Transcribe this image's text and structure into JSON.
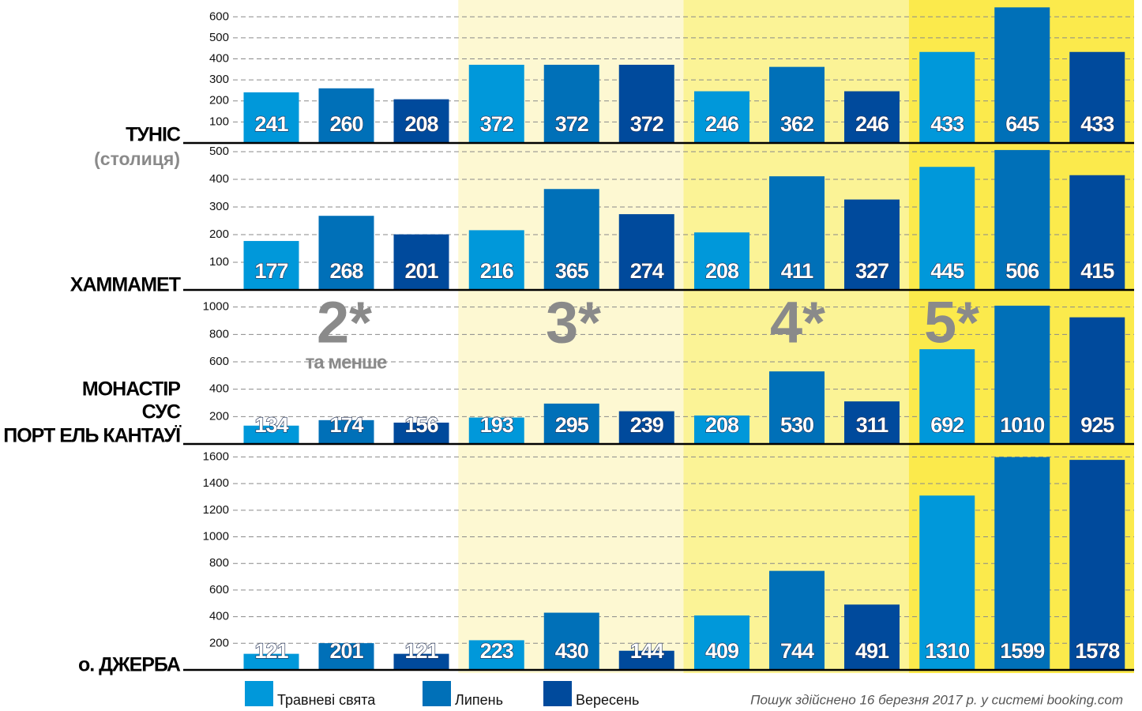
{
  "chart_data": [
    {
      "type": "bar",
      "title_lines": [
        "ТУНІС"
      ],
      "subtitle": "(столиця)",
      "series": [
        {
          "name": "Травневі свята",
          "color": "#0098da",
          "values": [
            241,
            372,
            246,
            433
          ]
        },
        {
          "name": "Липень",
          "color": "#0070b8",
          "values": [
            260,
            372,
            362,
            645
          ]
        },
        {
          "name": "Вересень",
          "color": "#004a9c",
          "values": [
            208,
            372,
            246,
            433
          ]
        }
      ],
      "ylim": [
        0,
        650
      ],
      "yticks": [
        100,
        200,
        300,
        400,
        500,
        600
      ],
      "grid": true
    },
    {
      "type": "bar",
      "title_lines": [
        "ХАММАМЕТ"
      ],
      "series": [
        {
          "name": "Травневі свята",
          "color": "#0098da",
          "values": [
            177,
            216,
            208,
            445
          ]
        },
        {
          "name": "Липень",
          "color": "#0070b8",
          "values": [
            268,
            365,
            411,
            506
          ]
        },
        {
          "name": "Вересень",
          "color": "#004a9c",
          "values": [
            201,
            274,
            327,
            415
          ]
        }
      ],
      "ylim": [
        0,
        520
      ],
      "yticks": [
        100,
        200,
        300,
        400,
        500
      ],
      "grid": true
    },
    {
      "type": "bar",
      "title_lines": [
        "МОНАСТІР",
        "СУС",
        "ПОРТ ЕЛЬ КАНТАУЇ"
      ],
      "series": [
        {
          "name": "Травневі свята",
          "color": "#0098da",
          "values": [
            134,
            193,
            208,
            692
          ]
        },
        {
          "name": "Липень",
          "color": "#0070b8",
          "values": [
            174,
            295,
            530,
            1010
          ]
        },
        {
          "name": "Вересень",
          "color": "#004a9c",
          "values": [
            156,
            239,
            311,
            925
          ]
        }
      ],
      "ylim": [
        0,
        1050
      ],
      "yticks": [
        200,
        400,
        600,
        800,
        1000
      ],
      "grid": true
    },
    {
      "type": "bar",
      "title_lines": [
        "о. ДЖЕРБА"
      ],
      "series": [
        {
          "name": "Травневі свята",
          "color": "#0098da",
          "values": [
            121,
            223,
            409,
            1310
          ]
        },
        {
          "name": "Липень",
          "color": "#0070b8",
          "values": [
            201,
            430,
            744,
            1599
          ]
        },
        {
          "name": "Вересень",
          "color": "#004a9c",
          "values": [
            121,
            144,
            491,
            1578
          ]
        }
      ],
      "ylim": [
        0,
        1650
      ],
      "yticks": [
        200,
        400,
        600,
        800,
        1000,
        1200,
        1400,
        1600
      ],
      "grid": true
    }
  ],
  "star_groups": [
    "2*",
    "3*",
    "4*",
    "5*"
  ],
  "star_group_note": "та менше",
  "band_colors": [
    "#ffffff",
    "#fdf8d2",
    "#fbf396",
    "#fbea4c"
  ],
  "footnote": "Пошук здійснено 16 березня 2017 р. у системі booking.com"
}
